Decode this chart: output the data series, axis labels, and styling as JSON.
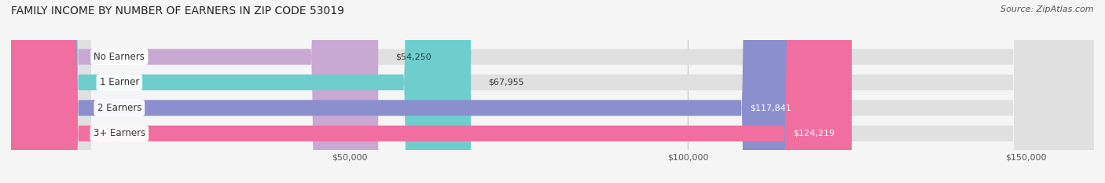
{
  "title": "FAMILY INCOME BY NUMBER OF EARNERS IN ZIP CODE 53019",
  "source": "Source: ZipAtlas.com",
  "categories": [
    "No Earners",
    "1 Earner",
    "2 Earners",
    "3+ Earners"
  ],
  "values": [
    54250,
    67955,
    117841,
    124219
  ],
  "bar_colors": [
    "#c9a8d4",
    "#6ecece",
    "#8b8fcd",
    "#f06fa0"
  ],
  "bar_bg_color": "#e0e0e0",
  "value_labels": [
    "$54,250",
    "$67,955",
    "$117,841",
    "$124,219"
  ],
  "x_ticks": [
    50000,
    100000,
    150000
  ],
  "x_tick_labels": [
    "$50,000",
    "$100,000",
    "$150,000"
  ],
  "x_max": 160000,
  "x_min": 0,
  "title_fontsize": 10,
  "source_fontsize": 8,
  "label_fontsize": 8.5,
  "value_fontsize": 8,
  "background_color": "#f5f5f5"
}
